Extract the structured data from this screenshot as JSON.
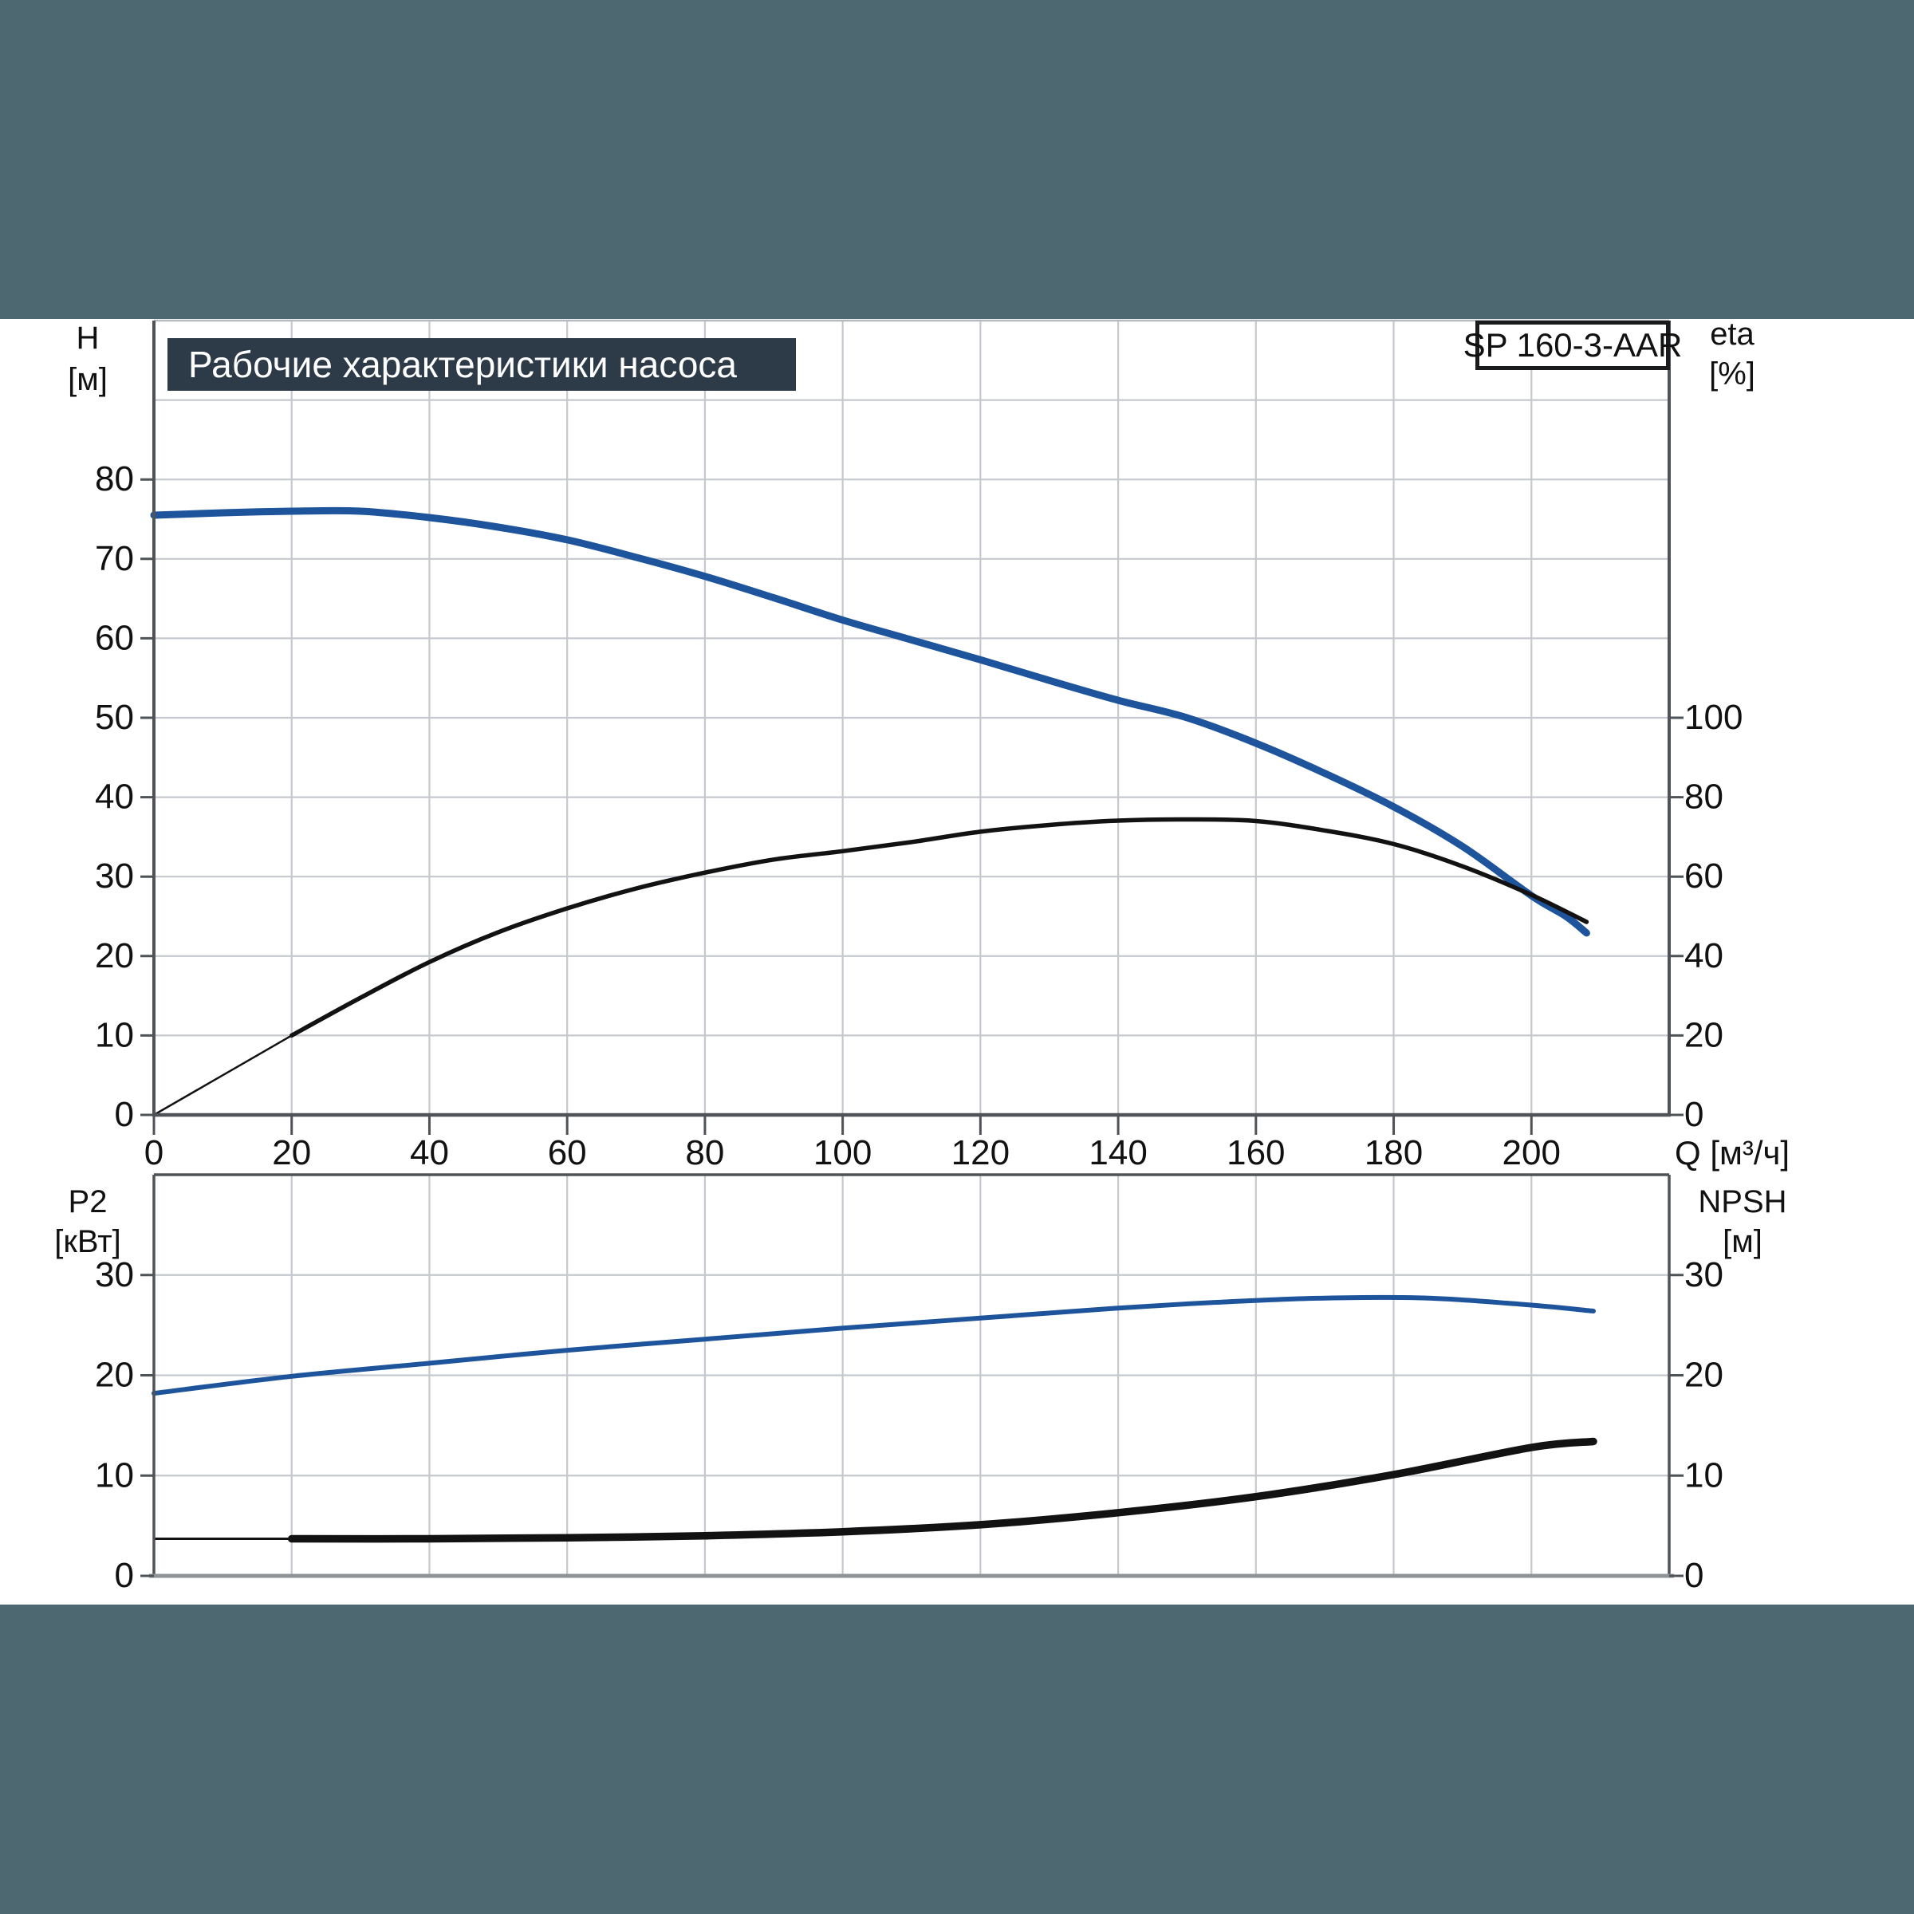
{
  "page": {
    "background": "#ffffff",
    "band_color": "#4e6872",
    "title_box_color": "#2d3a48",
    "accent_blue": "#1d549b",
    "curve_black": "#121212",
    "grid_color": "#c5c9cf",
    "frame_color": "#4f5357",
    "frame_light_color": "#b6bbc1",
    "frame_medium_color": "#8e9398"
  },
  "header": {
    "title": "Рабочие характеристики насоса",
    "model": "SP 160-3-AAR"
  },
  "chart_data": [
    {
      "id": "main",
      "type": "line",
      "title": "Рабочие характеристики насоса",
      "x_axis": {
        "label": "Q [м³/ч]",
        "min": 0,
        "max": 220,
        "grid_step": 20,
        "tick_labels": [
          0,
          20,
          40,
          60,
          80,
          100,
          120,
          140,
          160,
          180,
          200
        ]
      },
      "y_left": {
        "label": "H",
        "unit": "[м]",
        "min": 0,
        "max": 100,
        "grid_step": 10,
        "tick_labels": [
          80,
          70,
          60,
          50,
          40,
          30,
          20,
          10,
          0
        ]
      },
      "y_right": {
        "label": "eta",
        "unit": "[%]",
        "min": 0,
        "max": 200,
        "tick_step": 20,
        "tick_labels": [
          100,
          80,
          60,
          40,
          20,
          0
        ]
      },
      "grid": true,
      "legend": "none",
      "series": [
        {
          "name": "H-Q head curve",
          "axis": "left",
          "color_key": "accent_blue",
          "width": 9,
          "points": [
            [
              0,
              75.5
            ],
            [
              10,
              75.8
            ],
            [
              20,
              76
            ],
            [
              30,
              76
            ],
            [
              40,
              75.2
            ],
            [
              50,
              74
            ],
            [
              60,
              72.4
            ],
            [
              70,
              70.2
            ],
            [
              80,
              67.8
            ],
            [
              90,
              65.1
            ],
            [
              100,
              62.3
            ],
            [
              110,
              59.8
            ],
            [
              120,
              57.3
            ],
            [
              130,
              54.7
            ],
            [
              140,
              52.2
            ],
            [
              150,
              50
            ],
            [
              160,
              46.8
            ],
            [
              170,
              43
            ],
            [
              180,
              38.8
            ],
            [
              190,
              33.8
            ],
            [
              200,
              27.6
            ],
            [
              205,
              25
            ],
            [
              208,
              22.9
            ]
          ]
        },
        {
          "name": "eta efficiency curve",
          "axis": "right",
          "color_key": "curve_black",
          "width": 5.5,
          "thin_until_q": 16,
          "thin_width": 2.5,
          "points": [
            [
              0,
              0
            ],
            [
              10,
              10
            ],
            [
              20,
              20
            ],
            [
              30,
              29.5
            ],
            [
              40,
              38.5
            ],
            [
              50,
              46
            ],
            [
              60,
              52
            ],
            [
              70,
              57
            ],
            [
              80,
              61
            ],
            [
              90,
              64.3
            ],
            [
              100,
              66.4
            ],
            [
              110,
              68.7
            ],
            [
              120,
              71.3
            ],
            [
              130,
              73
            ],
            [
              140,
              74.1
            ],
            [
              150,
              74.4
            ],
            [
              160,
              74
            ],
            [
              170,
              71.6
            ],
            [
              180,
              68.2
            ],
            [
              190,
              62.6
            ],
            [
              200,
              55.4
            ],
            [
              208,
              48.6
            ]
          ]
        }
      ]
    },
    {
      "id": "power-npsh",
      "type": "line",
      "x_axis": {
        "label": "",
        "min": 0,
        "max": 220,
        "grid_step": 20,
        "tick_labels": []
      },
      "y_left": {
        "label": "P2",
        "unit": "[кВт]",
        "min": 0,
        "max": 40,
        "grid_step": 10,
        "tick_labels": [
          30,
          20,
          10,
          0
        ]
      },
      "y_right": {
        "label": "NPSH",
        "unit": "[м]",
        "min": 0,
        "max": 40,
        "tick_step": 10,
        "tick_labels": [
          30,
          20,
          10,
          0
        ]
      },
      "grid": true,
      "legend": "none",
      "series": [
        {
          "name": "P2 shaft power curve",
          "axis": "left",
          "color_key": "accent_blue",
          "width": 6,
          "points": [
            [
              0,
              18.2
            ],
            [
              20,
              19.9
            ],
            [
              40,
              21.2
            ],
            [
              60,
              22.5
            ],
            [
              80,
              23.6
            ],
            [
              100,
              24.7
            ],
            [
              120,
              25.7
            ],
            [
              140,
              26.7
            ],
            [
              155,
              27.3
            ],
            [
              170,
              27.7
            ],
            [
              185,
              27.7
            ],
            [
              200,
              27
            ],
            [
              209,
              26.4
            ]
          ]
        },
        {
          "name": "NPSH curve",
          "axis": "right",
          "color_key": "curve_black",
          "width": 9.5,
          "thin_until_q": 16,
          "thin_width": 3,
          "points": [
            [
              0,
              3.7
            ],
            [
              20,
              3.7
            ],
            [
              40,
              3.7
            ],
            [
              60,
              3.8
            ],
            [
              80,
              4
            ],
            [
              100,
              4.4
            ],
            [
              120,
              5.1
            ],
            [
              140,
              6.3
            ],
            [
              160,
              7.9
            ],
            [
              180,
              10.1
            ],
            [
              200,
              12.8
            ],
            [
              209,
              13.4
            ]
          ]
        }
      ]
    }
  ]
}
